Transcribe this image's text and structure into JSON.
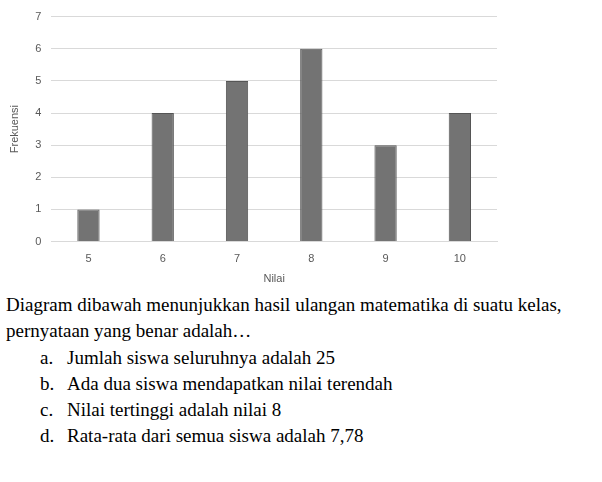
{
  "chart_data": {
    "type": "bar",
    "x_label": "Nilai",
    "y_label": "Frekuensi",
    "categories": [
      "5",
      "6",
      "7",
      "8",
      "9",
      "10"
    ],
    "values": [
      1,
      4,
      5,
      6,
      3,
      4
    ],
    "color": "#737373",
    "ylim": [
      0,
      7
    ],
    "yticks": [
      0,
      1,
      2,
      3,
      4,
      5,
      6,
      7
    ],
    "grid": true
  },
  "question": {
    "text": "Diagram dibawah menunjukkan hasil ulangan matematika di suatu kelas, pernyataan yang benar adalah…",
    "options": [
      {
        "label": "a.",
        "text": "Jumlah siswa seluruhnya adalah 25"
      },
      {
        "label": "b.",
        "text": "Ada dua siswa mendapatkan nilai terendah"
      },
      {
        "label": "c.",
        "text": "Nilai tertinggi adalah nilai 8"
      },
      {
        "label": "d.",
        "text": "Rata-rata dari semua siswa adalah 7,78"
      }
    ]
  }
}
